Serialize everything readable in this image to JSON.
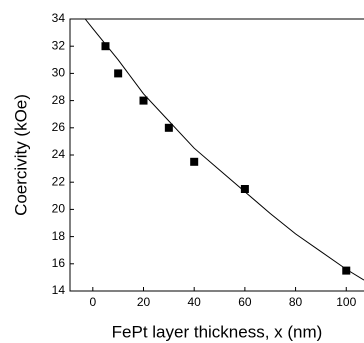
{
  "chart_data": {
    "type": "scatter",
    "xlabel": "FePt layer thickness, x (nm)",
    "ylabel": "Coercivity (kOe)",
    "series": [
      {
        "type": "scatter",
        "color": "#000000",
        "x": [
          5,
          10,
          20,
          30,
          40,
          60,
          100
        ],
        "values": [
          32,
          30,
          28,
          26,
          23.5,
          21.5,
          15.5
        ]
      },
      {
        "type": "line",
        "color": "#000000",
        "x": [
          -3,
          0,
          10,
          20,
          30,
          40,
          50,
          60,
          70,
          80,
          90,
          100,
          107
        ],
        "values": [
          34.0,
          33.3,
          31.0,
          28.5,
          26.5,
          24.5,
          22.9,
          21.3,
          19.7,
          18.2,
          16.9,
          15.6,
          14.8
        ]
      }
    ],
    "xlim": [
      -9,
      107
    ],
    "xticks": [
      0,
      20,
      40,
      60,
      80,
      100
    ],
    "ylim": [
      14,
      34
    ],
    "yticks": [
      14,
      16,
      18,
      20,
      22,
      24,
      26,
      28,
      30,
      32,
      34
    ]
  }
}
